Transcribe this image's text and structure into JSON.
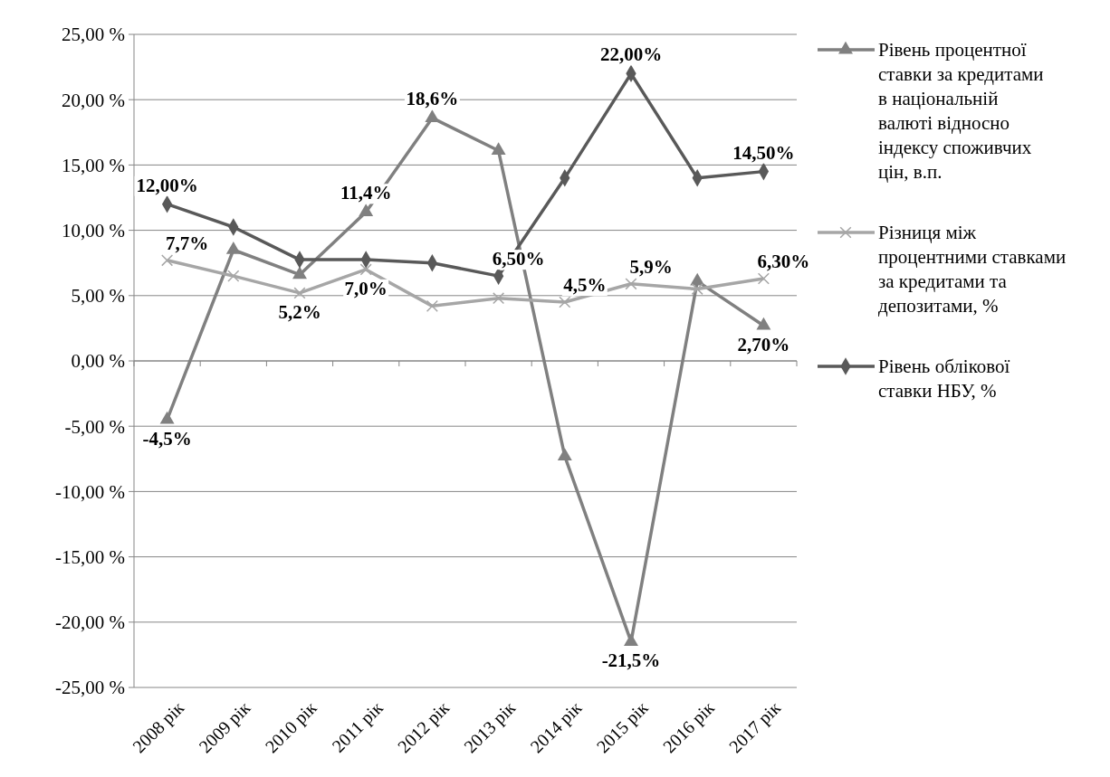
{
  "chart_data": {
    "type": "line",
    "categories": [
      "2008 рік",
      "2009 рік",
      "2010 рік",
      "2011 рік",
      "2012 рік",
      "2013 рік",
      "2014 рік",
      "2015 рік",
      "2016 рік",
      "2017 рік"
    ],
    "ylim": [
      -25,
      25
    ],
    "yticks": [
      {
        "value": -25,
        "label": "-25,00 %"
      },
      {
        "value": -20,
        "label": "-20,00 %"
      },
      {
        "value": -15,
        "label": "-15,00 %"
      },
      {
        "value": -10,
        "label": "-10,00 %"
      },
      {
        "value": -5,
        "label": "-5,00 %"
      },
      {
        "value": 0,
        "label": "0,00 %"
      },
      {
        "value": 5,
        "label": "5,00 %"
      },
      {
        "value": 10,
        "label": "10,00 %"
      },
      {
        "value": 15,
        "label": "15,00 %"
      },
      {
        "value": 20,
        "label": "20,00 %"
      },
      {
        "value": 25,
        "label": "25,00 %"
      }
    ],
    "grid": "y",
    "legend": "right",
    "line_style": "solid",
    "series": [
      {
        "name": "Рівень процентної ставки за кредитами в національній валюті відносно індексу споживчих цін, в.п.",
        "color": "#808080",
        "marker": "triangle",
        "values": [
          -4.5,
          8.5,
          6.6,
          11.4,
          18.6,
          16.1,
          -7.3,
          -21.5,
          6.1,
          2.7
        ],
        "value_labels": [
          "-4,5%",
          null,
          null,
          "11,4%",
          "18,6%",
          null,
          null,
          "-21,5%",
          null,
          "2,70%"
        ]
      },
      {
        "name": "Різниця між процентними ставками за кредитами та депозитами, %",
        "color": "#a6a6a6",
        "marker": "cross",
        "values": [
          7.7,
          6.5,
          5.2,
          7.0,
          4.2,
          4.8,
          4.5,
          5.9,
          5.5,
          6.3
        ],
        "value_labels": [
          "7,7%",
          null,
          "5,2%",
          "7,0%",
          null,
          null,
          "4,5%",
          "5,9%",
          null,
          "6,30%"
        ]
      },
      {
        "name": "Рівень облікової ставки НБУ, %",
        "color": "#595959",
        "marker": "diamond",
        "values": [
          12.0,
          10.25,
          7.75,
          7.75,
          7.5,
          6.5,
          14.0,
          22.0,
          14.0,
          14.5
        ],
        "value_labels": [
          "12,00%",
          null,
          null,
          null,
          null,
          "6,50%",
          null,
          "22,00%",
          null,
          "14,50%"
        ]
      }
    ]
  }
}
